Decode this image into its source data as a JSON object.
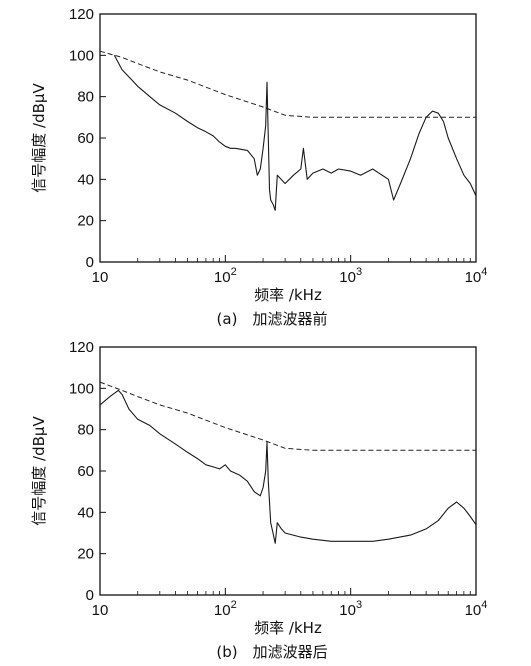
{
  "chart_data": [
    {
      "type": "line",
      "caption": "(a)　加滤波器前",
      "xlabel": "频率 /kHz",
      "ylabel": "信号幅度 /dBμV",
      "x_scale": "log",
      "xlim": [
        10,
        10000
      ],
      "ylim": [
        0,
        120
      ],
      "y_ticks": [
        0,
        20,
        40,
        60,
        80,
        100,
        120
      ],
      "x_ticks": [
        {
          "value": 10,
          "base": "10",
          "exp": ""
        },
        {
          "value": 100,
          "base": "10",
          "exp": "2"
        },
        {
          "value": 1000,
          "base": "10",
          "exp": "3"
        },
        {
          "value": 10000,
          "base": "10",
          "exp": "4"
        }
      ],
      "grid": false,
      "series": [
        {
          "style": "limit-dashed",
          "x": [
            10,
            15,
            20,
            30,
            50,
            100,
            200,
            300,
            500,
            700,
            1000,
            2000,
            5000,
            10000
          ],
          "values": [
            102,
            99,
            96,
            92,
            88,
            81,
            75,
            71,
            70,
            70,
            70,
            70,
            70,
            70
          ]
        },
        {
          "style": "measured",
          "x": [
            13,
            15,
            18,
            20,
            25,
            30,
            40,
            50,
            60,
            70,
            80,
            90,
            100,
            110,
            120,
            150,
            170,
            180,
            190,
            200,
            210,
            215,
            220,
            225,
            230,
            240,
            250,
            260,
            300,
            350,
            400,
            420,
            450,
            500,
            600,
            700,
            800,
            1000,
            1200,
            1500,
            2000,
            2200,
            2500,
            3000,
            3500,
            4000,
            4500,
            5000,
            5500,
            6000,
            7000,
            8000,
            9000,
            10000
          ],
          "values": [
            100,
            93,
            88,
            85,
            80,
            76,
            72,
            68,
            65,
            63,
            61,
            58,
            56,
            55,
            55,
            54,
            50,
            42,
            45,
            55,
            66,
            87,
            60,
            35,
            30,
            28,
            25,
            42,
            38,
            42,
            45,
            55,
            40,
            43,
            45,
            43,
            45,
            44,
            42,
            45,
            40,
            30,
            38,
            50,
            62,
            70,
            73,
            72,
            68,
            60,
            50,
            42,
            38,
            32
          ]
        }
      ]
    },
    {
      "type": "line",
      "caption": "(b)　加滤波器后",
      "xlabel": "频率 /kHz",
      "ylabel": "信号幅度 /dBμV",
      "x_scale": "log",
      "xlim": [
        10,
        10000
      ],
      "ylim": [
        0,
        120
      ],
      "y_ticks": [
        0,
        20,
        40,
        60,
        80,
        100,
        120
      ],
      "x_ticks": [
        {
          "value": 10,
          "base": "10",
          "exp": ""
        },
        {
          "value": 100,
          "base": "10",
          "exp": "2"
        },
        {
          "value": 1000,
          "base": "10",
          "exp": "3"
        },
        {
          "value": 10000,
          "base": "10",
          "exp": "4"
        }
      ],
      "grid": false,
      "series": [
        {
          "style": "limit-dashed",
          "x": [
            10,
            15,
            20,
            30,
            50,
            100,
            200,
            300,
            500,
            700,
            1000,
            2000,
            5000,
            10000
          ],
          "values": [
            103,
            99,
            96,
            92,
            88,
            81,
            75,
            71,
            70,
            70,
            70,
            70,
            70,
            70
          ]
        },
        {
          "style": "measured",
          "x": [
            10,
            12,
            14,
            15,
            17,
            20,
            25,
            30,
            40,
            50,
            60,
            70,
            80,
            90,
            100,
            110,
            130,
            150,
            170,
            190,
            200,
            210,
            215,
            220,
            225,
            230,
            240,
            250,
            260,
            280,
            300,
            400,
            500,
            700,
            1000,
            1500,
            2000,
            3000,
            4000,
            5000,
            6000,
            7000,
            8000,
            9000,
            10000
          ],
          "values": [
            92,
            96,
            99,
            97,
            90,
            85,
            82,
            78,
            73,
            69,
            66,
            63,
            62,
            61,
            63,
            60,
            58,
            55,
            50,
            48,
            52,
            60,
            74,
            55,
            45,
            35,
            30,
            25,
            35,
            32,
            30,
            28,
            27,
            26,
            26,
            26,
            27,
            29,
            32,
            36,
            42,
            45,
            42,
            38,
            34
          ]
        }
      ]
    }
  ]
}
